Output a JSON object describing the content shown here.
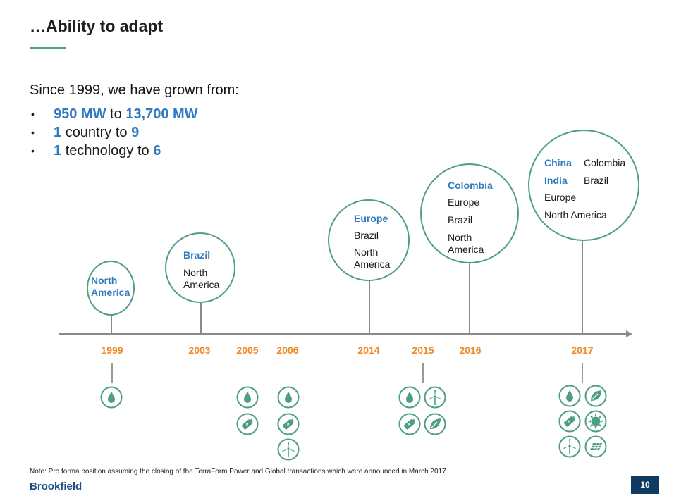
{
  "title": "…Ability to adapt",
  "lead": "Since 1999, we have grown from:",
  "bullets": [
    {
      "dot": "•",
      "a": "950 MW",
      "mid": "to",
      "b": "13,700 MW"
    },
    {
      "dot": "•",
      "a": "1",
      "mid": "country to",
      "b": "9"
    },
    {
      "dot": "•",
      "a": "1",
      "mid": "technology to",
      "b": "6"
    }
  ],
  "circles": {
    "y1999": {
      "new": "North America"
    },
    "y2003": {
      "new": "Brazil",
      "existing": [
        "North",
        "America"
      ]
    },
    "y2014": {
      "new": "Europe",
      "existing": [
        "Brazil",
        "North",
        "America"
      ]
    },
    "y2016": {
      "new": "Colombia",
      "existing": [
        "Europe",
        "Brazil",
        "North",
        "America"
      ]
    },
    "y2017": {
      "new": [
        "China",
        "India"
      ],
      "existing": [
        "Colombia",
        "Brazil",
        "Europe",
        "North America"
      ]
    }
  },
  "years": [
    "1999",
    "2003",
    "2005",
    "2006",
    "2014",
    "2015",
    "2016",
    "2017"
  ],
  "technologies": {
    "y1999": [
      "hydro-icon"
    ],
    "y2005": [
      "hydro-icon",
      "storage-icon"
    ],
    "y2006": [
      "hydro-icon",
      "storage-icon",
      "wind-icon"
    ],
    "y2015": [
      "hydro-icon",
      "wind-icon",
      "storage-icon",
      "biomass-icon"
    ],
    "y2017": [
      "hydro-icon",
      "biomass-icon",
      "storage-icon",
      "solar-thermal-icon",
      "wind-icon",
      "solar-pv-icon"
    ]
  },
  "colors": {
    "teal": "#4e9e86",
    "blue": "#2f7ac1",
    "orange": "#f08a22",
    "navy": "#0f3b63"
  },
  "note": "Note: Pro forma position assuming the closing of the TerraForm Power and Global transactions which were announced in March 2017",
  "brand": "Brookfield",
  "page_number": "10"
}
